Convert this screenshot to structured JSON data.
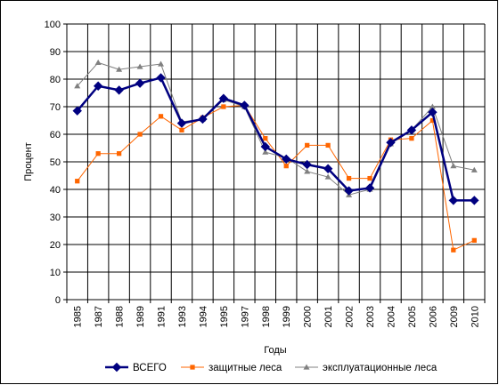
{
  "chart_data": {
    "type": "line",
    "categories": [
      "1985",
      "1987",
      "1988",
      "1989",
      "1991",
      "1993",
      "1994",
      "1995",
      "1997",
      "1998",
      "1999",
      "2000",
      "2001",
      "2002",
      "2003",
      "2004",
      "2005",
      "2006",
      "2009",
      "2010"
    ],
    "series": [
      {
        "name": "ВСЕГО",
        "color": "#000080",
        "marker": "diamond",
        "values": [
          68.5,
          77.5,
          76,
          78.5,
          80.5,
          64,
          65.5,
          73,
          70.5,
          55.5,
          51,
          49,
          47.5,
          39.5,
          40.5,
          57,
          61.5,
          68,
          36,
          36
        ]
      },
      {
        "name": "защитные леса",
        "color": "#FF6600",
        "marker": "square",
        "values": [
          43,
          53,
          53,
          60,
          66.5,
          61.5,
          66,
          70,
          70.5,
          58.5,
          48.5,
          56,
          56,
          44,
          44,
          58,
          58.5,
          65,
          18,
          21.5
        ]
      },
      {
        "name": "эксплуатационные леса",
        "color": "#808080",
        "marker": "triangle",
        "values": [
          77.5,
          86,
          83.5,
          84.5,
          85.5,
          64.5,
          65.5,
          72.5,
          70,
          53.5,
          51.5,
          46.5,
          44.5,
          38,
          40,
          56.5,
          61.5,
          70,
          48.5,
          47
        ]
      }
    ],
    "xlabel": "Годы",
    "ylabel": "Процент",
    "ylim": [
      0,
      100
    ],
    "yticks": [
      "0",
      "10",
      "20",
      "30",
      "40",
      "50",
      "60",
      "70",
      "80",
      "90",
      "100"
    ],
    "grid": true,
    "legend": "bottom"
  }
}
